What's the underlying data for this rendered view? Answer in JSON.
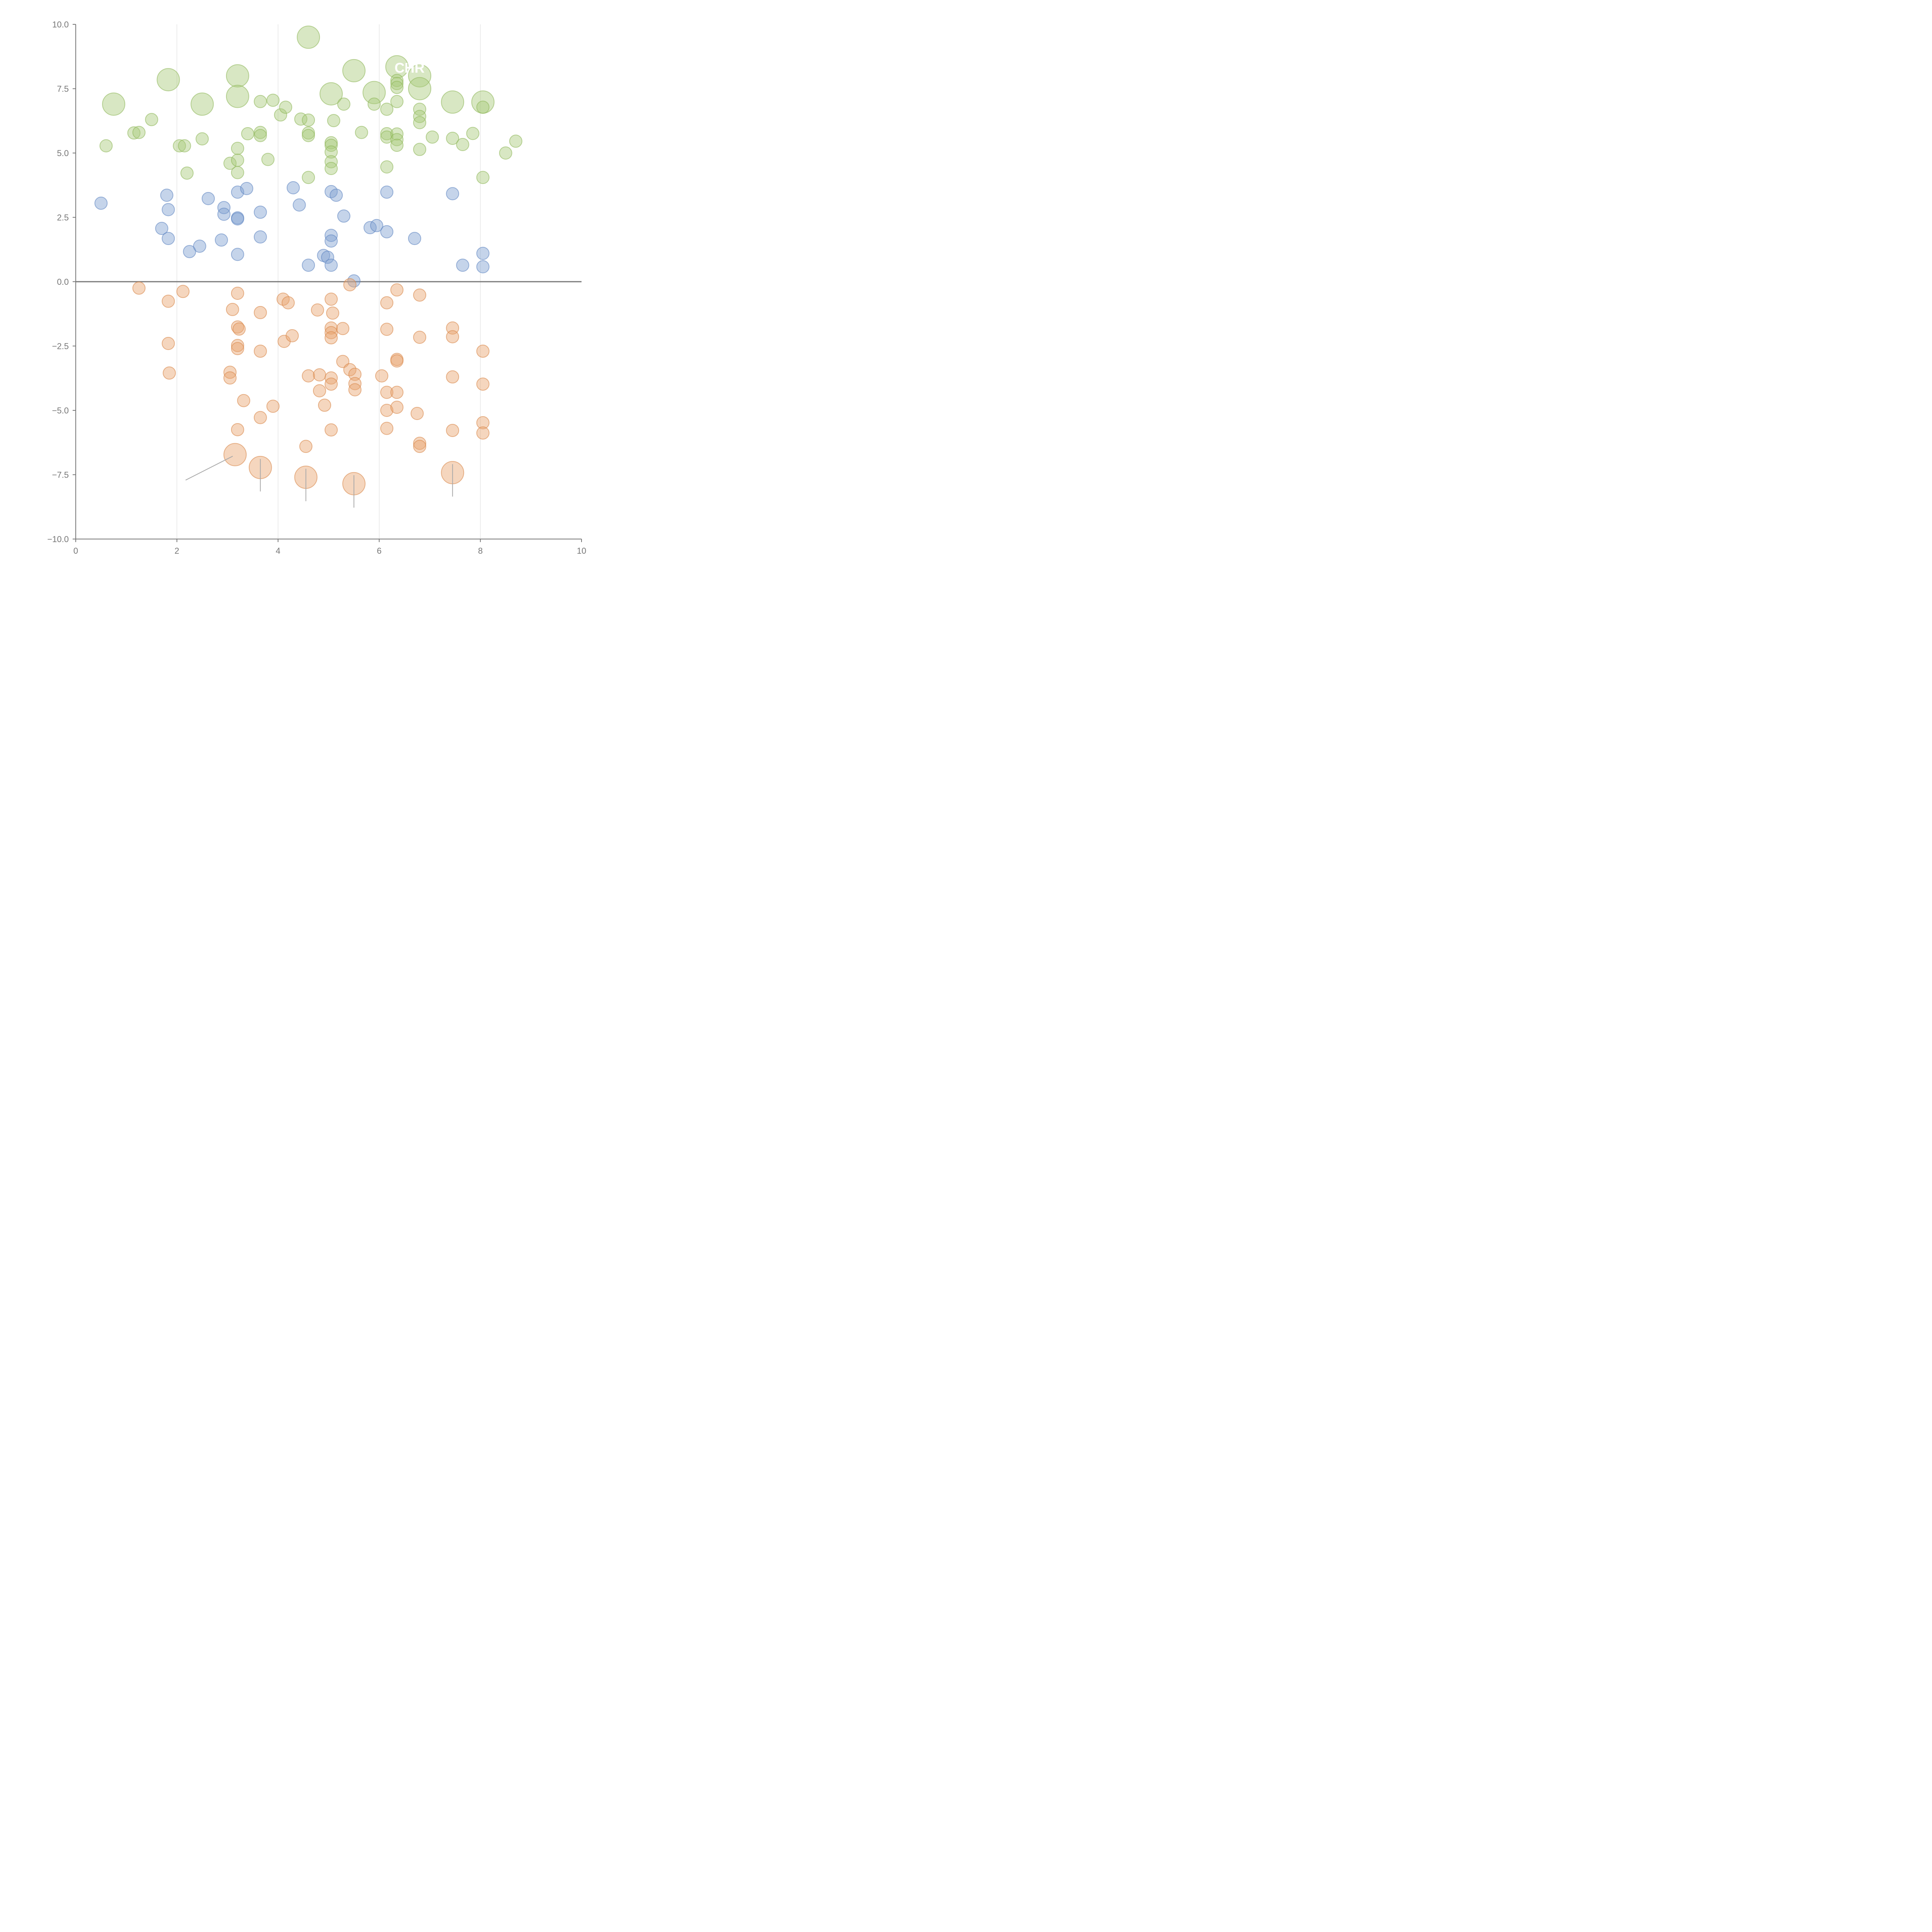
{
  "chart_data": {
    "type": "scatter",
    "title": "",
    "xlabel": "",
    "ylabel": "",
    "xlim": [
      0,
      10
    ],
    "ylim": [
      -10,
      10
    ],
    "grid": "vertical",
    "legend": "none",
    "x_ticks": [
      "0",
      "2",
      "4",
      "6",
      "8",
      "10"
    ],
    "y_ticks": [
      "10.0",
      "7.5",
      "5.0",
      "2.5",
      "0.0",
      "−2.5",
      "−5.0",
      "−7.5",
      "−10.0"
    ],
    "colors": {
      "green_fill": "#a9c97a",
      "green_stroke": "#8fb85a",
      "blue_fill": "#7f9fd0",
      "blue_stroke": "#5f85c2",
      "orange_fill": "#e8a36f",
      "orange_stroke": "#d9874a"
    },
    "annotations": [
      {
        "text": "CHR",
        "x": 6.6,
        "y": 8.3
      }
    ],
    "series": [
      {
        "color_key": "green",
        "points": [
          [
            4.6,
            9.5,
            2
          ],
          [
            1.83,
            7.85,
            2
          ],
          [
            3.2,
            8.0,
            2
          ],
          [
            5.5,
            8.2,
            2
          ],
          [
            6.35,
            8.35,
            2
          ],
          [
            6.8,
            8.0,
            2
          ],
          [
            6.8,
            7.5,
            2
          ],
          [
            0.75,
            6.9,
            2
          ],
          [
            2.5,
            6.9,
            2
          ],
          [
            3.2,
            7.2,
            2
          ],
          [
            5.05,
            7.3,
            2
          ],
          [
            5.9,
            7.35,
            2
          ],
          [
            7.45,
            6.98,
            2
          ],
          [
            8.05,
            6.98,
            2
          ],
          [
            0.6,
            5.28,
            1
          ],
          [
            1.15,
            5.78,
            1
          ],
          [
            1.25,
            5.8,
            1
          ],
          [
            1.5,
            6.3,
            1
          ],
          [
            2.05,
            5.28,
            1
          ],
          [
            2.15,
            5.28,
            1
          ],
          [
            2.2,
            4.22,
            1
          ],
          [
            2.5,
            5.55,
            1
          ],
          [
            3.05,
            4.6,
            1
          ],
          [
            3.2,
            5.18,
            1
          ],
          [
            3.2,
            4.72,
            1
          ],
          [
            3.2,
            4.24,
            1
          ],
          [
            3.4,
            5.75,
            1
          ],
          [
            3.65,
            5.8,
            1
          ],
          [
            3.65,
            5.68,
            1
          ],
          [
            3.65,
            7.0,
            1
          ],
          [
            3.8,
            4.75,
            1
          ],
          [
            3.9,
            7.05,
            1
          ],
          [
            4.05,
            6.48,
            1
          ],
          [
            4.15,
            6.78,
            1
          ],
          [
            4.45,
            6.32,
            1
          ],
          [
            4.6,
            6.28,
            1
          ],
          [
            4.6,
            5.78,
            1
          ],
          [
            4.6,
            5.68,
            1
          ],
          [
            4.6,
            4.05,
            1
          ],
          [
            5.05,
            5.4,
            1
          ],
          [
            5.05,
            5.3,
            1
          ],
          [
            5.05,
            5.04,
            1
          ],
          [
            5.05,
            4.66,
            1
          ],
          [
            5.05,
            4.4,
            1
          ],
          [
            5.1,
            6.26,
            1
          ],
          [
            5.3,
            6.9,
            1
          ],
          [
            5.65,
            5.8,
            1
          ],
          [
            5.9,
            6.9,
            1
          ],
          [
            6.15,
            6.7,
            1
          ],
          [
            6.15,
            5.75,
            1
          ],
          [
            6.15,
            5.62,
            1
          ],
          [
            6.15,
            4.46,
            1
          ],
          [
            6.35,
            7.82,
            1
          ],
          [
            6.35,
            7.7,
            1
          ],
          [
            6.35,
            7.55,
            1
          ],
          [
            6.35,
            7.0,
            1
          ],
          [
            6.35,
            5.74,
            1
          ],
          [
            6.35,
            5.52,
            1
          ],
          [
            6.35,
            5.3,
            1
          ],
          [
            6.8,
            6.7,
            1
          ],
          [
            6.8,
            6.42,
            1
          ],
          [
            6.8,
            6.18,
            1
          ],
          [
            6.8,
            5.14,
            1
          ],
          [
            7.05,
            5.62,
            1
          ],
          [
            7.45,
            5.57,
            1
          ],
          [
            7.65,
            5.33,
            1
          ],
          [
            7.85,
            5.76,
            1
          ],
          [
            8.05,
            6.78,
            1
          ],
          [
            8.05,
            4.05,
            1
          ],
          [
            8.5,
            5.0,
            1
          ],
          [
            8.7,
            5.46,
            1
          ]
        ]
      },
      {
        "color_key": "blue",
        "points": [
          [
            0.5,
            3.05,
            1
          ],
          [
            1.7,
            2.07,
            1
          ],
          [
            1.8,
            3.36,
            1
          ],
          [
            1.83,
            2.8,
            1
          ],
          [
            1.83,
            1.68,
            1
          ],
          [
            2.25,
            1.17,
            1
          ],
          [
            2.45,
            1.38,
            1
          ],
          [
            2.62,
            3.23,
            1
          ],
          [
            2.88,
            1.62,
            1
          ],
          [
            2.93,
            2.88,
            1
          ],
          [
            2.93,
            2.62,
            1
          ],
          [
            3.2,
            3.48,
            1
          ],
          [
            3.2,
            2.48,
            1
          ],
          [
            3.2,
            2.44,
            1
          ],
          [
            3.2,
            1.06,
            1
          ],
          [
            3.38,
            3.62,
            1
          ],
          [
            3.65,
            2.7,
            1
          ],
          [
            3.65,
            1.74,
            1
          ],
          [
            4.3,
            3.65,
            1
          ],
          [
            4.42,
            2.98,
            1
          ],
          [
            4.6,
            0.64,
            1
          ],
          [
            4.9,
            1.02,
            1
          ],
          [
            4.98,
            0.95,
            1
          ],
          [
            5.05,
            3.5,
            1
          ],
          [
            5.05,
            1.8,
            1
          ],
          [
            5.05,
            1.58,
            1
          ],
          [
            5.05,
            0.64,
            1
          ],
          [
            5.15,
            3.36,
            1
          ],
          [
            5.3,
            2.55,
            1
          ],
          [
            5.5,
            0.03,
            1
          ],
          [
            5.82,
            2.1,
            1
          ],
          [
            5.95,
            2.18,
            1
          ],
          [
            6.15,
            3.48,
            1
          ],
          [
            6.15,
            1.94,
            1
          ],
          [
            6.7,
            1.68,
            1
          ],
          [
            7.45,
            3.42,
            1
          ],
          [
            7.65,
            0.64,
            1
          ],
          [
            8.05,
            1.1,
            1
          ],
          [
            8.05,
            0.58,
            1
          ]
        ]
      },
      {
        "color_key": "orange",
        "points": [
          [
            1.25,
            -0.25,
            1
          ],
          [
            1.83,
            -0.76,
            1
          ],
          [
            1.83,
            -2.4,
            1
          ],
          [
            1.85,
            -3.55,
            1
          ],
          [
            2.12,
            -0.38,
            1
          ],
          [
            3.05,
            -3.52,
            1
          ],
          [
            3.05,
            -3.74,
            1
          ],
          [
            3.1,
            -1.08,
            1
          ],
          [
            3.2,
            -0.45,
            1
          ],
          [
            3.2,
            -1.76,
            1
          ],
          [
            3.23,
            -1.84,
            1
          ],
          [
            3.2,
            -2.48,
            1
          ],
          [
            3.2,
            -2.6,
            1
          ],
          [
            3.2,
            -5.75,
            1
          ],
          [
            3.32,
            -4.62,
            1
          ],
          [
            3.65,
            -1.2,
            1
          ],
          [
            3.65,
            -2.7,
            1
          ],
          [
            3.65,
            -5.28,
            1
          ],
          [
            3.9,
            -4.84,
            1
          ],
          [
            4.1,
            -0.68,
            1
          ],
          [
            4.12,
            -2.32,
            1
          ],
          [
            4.2,
            -0.82,
            1
          ],
          [
            4.28,
            -2.1,
            1
          ],
          [
            4.55,
            -6.4,
            1
          ],
          [
            4.6,
            -3.66,
            1
          ],
          [
            4.78,
            -1.1,
            1
          ],
          [
            4.82,
            -3.62,
            1
          ],
          [
            4.82,
            -4.24,
            1
          ],
          [
            4.92,
            -4.8,
            1
          ],
          [
            5.05,
            -0.68,
            1
          ],
          [
            5.05,
            -1.8,
            1
          ],
          [
            5.05,
            -1.98,
            1
          ],
          [
            5.05,
            -2.18,
            1
          ],
          [
            5.05,
            -3.74,
            1
          ],
          [
            5.05,
            -3.98,
            1
          ],
          [
            5.05,
            -5.76,
            1
          ],
          [
            5.08,
            -1.22,
            1
          ],
          [
            5.28,
            -1.82,
            1
          ],
          [
            5.28,
            -3.1,
            1
          ],
          [
            5.42,
            -0.12,
            1
          ],
          [
            5.42,
            -3.42,
            1
          ],
          [
            5.52,
            -3.6,
            1
          ],
          [
            5.52,
            -3.96,
            1
          ],
          [
            5.52,
            -4.2,
            1
          ],
          [
            6.05,
            -3.66,
            1
          ],
          [
            6.15,
            -0.82,
            1
          ],
          [
            6.15,
            -1.85,
            1
          ],
          [
            6.15,
            -4.3,
            1
          ],
          [
            6.15,
            -5.0,
            1
          ],
          [
            6.15,
            -5.7,
            1
          ],
          [
            6.35,
            -0.32,
            1
          ],
          [
            6.35,
            -3.02,
            1
          ],
          [
            6.35,
            -3.08,
            1
          ],
          [
            6.35,
            -4.3,
            1
          ],
          [
            6.35,
            -4.88,
            1
          ],
          [
            6.75,
            -5.12,
            1
          ],
          [
            6.8,
            -0.52,
            1
          ],
          [
            6.8,
            -2.16,
            1
          ],
          [
            6.8,
            -6.28,
            1
          ],
          [
            6.8,
            -6.4,
            1
          ],
          [
            7.45,
            -1.8,
            1
          ],
          [
            7.45,
            -2.14,
            1
          ],
          [
            7.45,
            -3.7,
            1
          ],
          [
            7.45,
            -5.78,
            1
          ],
          [
            8.05,
            -2.7,
            1
          ],
          [
            8.05,
            -3.98,
            1
          ],
          [
            8.05,
            -5.48,
            1
          ],
          [
            8.05,
            -5.88,
            1
          ],
          [
            3.15,
            -6.72,
            2
          ],
          [
            3.65,
            -7.22,
            2
          ],
          [
            4.55,
            -7.6,
            2
          ],
          [
            5.5,
            -7.85,
            2
          ],
          [
            7.45,
            -7.42,
            2
          ]
        ]
      }
    ]
  }
}
